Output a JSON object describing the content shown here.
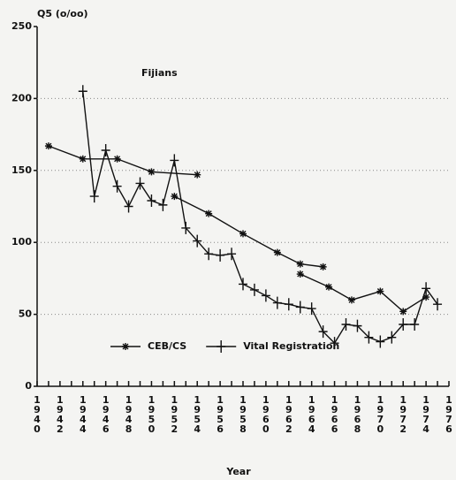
{
  "chart_data": {
    "type": "line",
    "title": "Fijians",
    "ylabel": "Q5 (o/oo)",
    "xlabel": "Year",
    "xlim": [
      1940,
      1976
    ],
    "xticks": [
      1940,
      1942,
      1944,
      1946,
      1948,
      1950,
      1952,
      1954,
      1956,
      1958,
      1960,
      1962,
      1964,
      1966,
      1968,
      1970,
      1972,
      1974,
      1976
    ],
    "ylim": [
      0,
      250
    ],
    "yticks": [
      0,
      50,
      100,
      150,
      200,
      250
    ],
    "grid": true,
    "legend": "bottom",
    "series": [
      {
        "name": "CEB/CS",
        "color": "#111111",
        "marker": "asterisk",
        "x": [
          1941,
          1944,
          1947,
          1950,
          1954,
          null,
          1952,
          1955,
          1958,
          1961,
          1963,
          1965,
          null,
          1963,
          1965.5,
          1967.5,
          1970,
          1972,
          1974
        ],
        "values": [
          167,
          158,
          158,
          149,
          147,
          null,
          132,
          120,
          106,
          93,
          85,
          83,
          null,
          78,
          69,
          60,
          66,
          52,
          62
        ]
      },
      {
        "name": "Vital Registration",
        "color": "#111111",
        "marker": "plus",
        "x": [
          1944,
          1945,
          1946,
          1947,
          1948,
          1949,
          1950,
          1951,
          1952,
          1953,
          1954,
          1955,
          1956,
          1957,
          1958,
          1959,
          1960,
          1961,
          1962,
          1963,
          1964,
          1965,
          1966,
          1967,
          1968,
          1969,
          1970,
          1971,
          1972,
          1973,
          1974,
          1975
        ],
        "values": [
          205,
          132,
          164,
          139,
          125,
          141,
          129,
          126,
          157,
          110,
          101,
          92,
          91,
          92,
          71,
          67,
          63,
          58,
          57,
          55,
          54,
          38,
          30,
          43,
          42,
          34,
          31,
          34,
          43,
          43,
          68,
          57
        ]
      }
    ]
  }
}
